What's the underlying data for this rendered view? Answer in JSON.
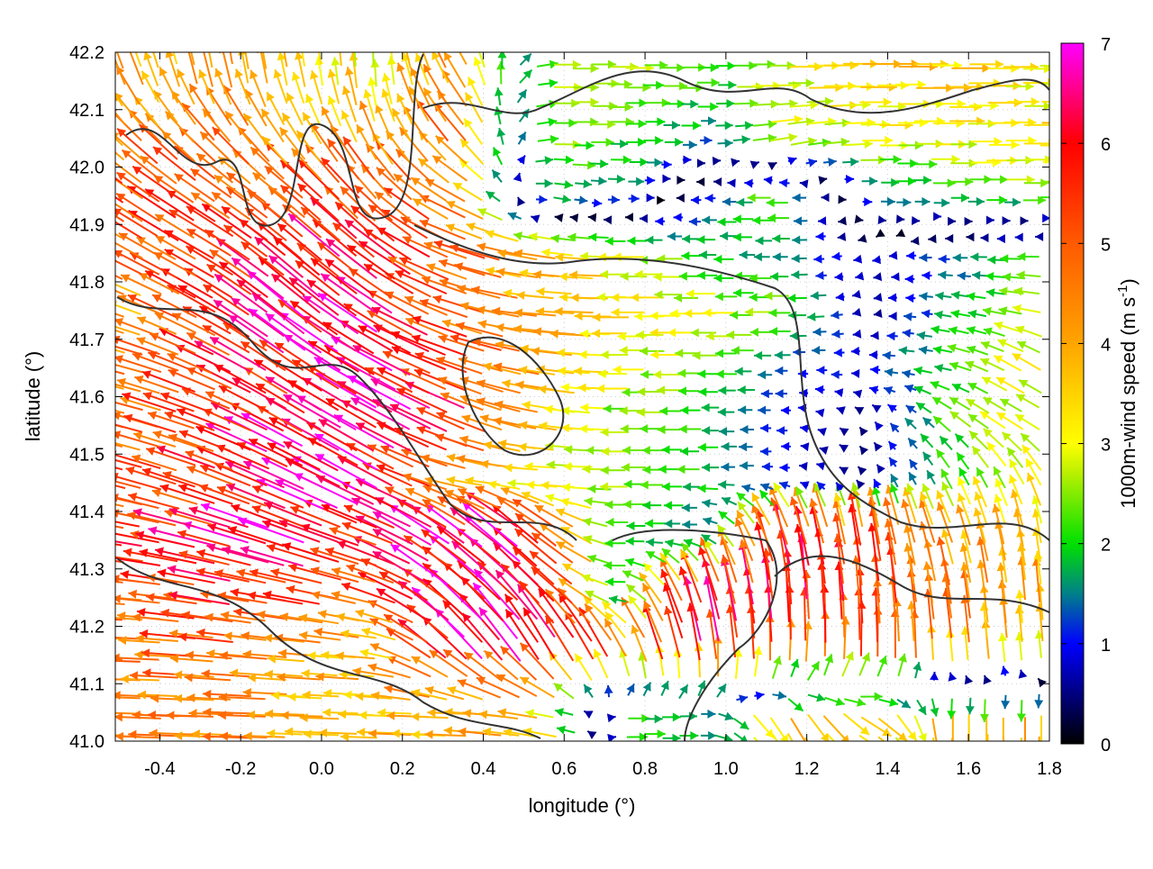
{
  "chart_data": {
    "type": "vector-field",
    "xlabel": "longitude (°)",
    "ylabel": "latitude (°)",
    "colorbar_label": "1000m-wind speed (m s",
    "colorbar_label_sup": "-1",
    "colorbar_label_end": ")",
    "xlim": [
      -0.51,
      1.8
    ],
    "ylim": [
      41.0,
      42.2
    ],
    "clim": [
      0,
      7
    ],
    "grid": true,
    "xticks": [
      "-0.4",
      "-0.2",
      "0.0",
      "0.2",
      "0.4",
      "0.6",
      "0.8",
      "1.0",
      "1.2",
      "1.4",
      "1.6",
      "1.8"
    ],
    "xtick_values": [
      -0.4,
      -0.2,
      0.0,
      0.2,
      0.4,
      0.6,
      0.8,
      1.0,
      1.2,
      1.4,
      1.6,
      1.8
    ],
    "yticks": [
      "41.0",
      "41.1",
      "41.2",
      "41.3",
      "41.4",
      "41.5",
      "41.6",
      "41.7",
      "41.8",
      "41.9",
      "42.0",
      "42.1",
      "42.2"
    ],
    "ytick_values": [
      41.0,
      41.1,
      41.2,
      41.3,
      41.4,
      41.5,
      41.6,
      41.7,
      41.8,
      41.9,
      42.0,
      42.1,
      42.2
    ],
    "cticks": [
      "0",
      "1",
      "2",
      "3",
      "4",
      "5",
      "6",
      "7"
    ],
    "ctick_values": [
      0,
      1,
      2,
      3,
      4,
      5,
      6,
      7
    ],
    "colormap": [
      {
        "v": 0,
        "c": "#000000"
      },
      {
        "v": 1,
        "c": "#0000ff"
      },
      {
        "v": 1.5,
        "c": "#00808a"
      },
      {
        "v": 2,
        "c": "#00e000"
      },
      {
        "v": 2.7,
        "c": "#b8f000"
      },
      {
        "v": 3,
        "c": "#ffff00"
      },
      {
        "v": 4,
        "c": "#ffa500"
      },
      {
        "v": 5,
        "c": "#ff5a00"
      },
      {
        "v": 6,
        "c": "#ff0000"
      },
      {
        "v": 7,
        "c": "#ff00ff"
      }
    ],
    "field_grid": {
      "lon": [
        -0.45,
        -0.25,
        -0.05,
        0.15,
        0.35,
        0.55,
        0.75,
        0.95,
        1.15,
        1.35,
        1.55,
        1.75
      ],
      "lat": [
        42.15,
        42.05,
        41.95,
        41.85,
        41.75,
        41.65,
        41.55,
        41.45,
        41.35,
        41.25,
        41.15,
        41.05
      ],
      "speed": [
        [
          4,
          4,
          3.5,
          3,
          4.5,
          2.5,
          2.5,
          2,
          3,
          3.5,
          3.5,
          3
        ],
        [
          4.5,
          4.5,
          4,
          4,
          5,
          2.5,
          2,
          1.5,
          3,
          3,
          3,
          3.5
        ],
        [
          5,
          5,
          5,
          5,
          4.5,
          2,
          1.5,
          1,
          2.5,
          1.5,
          2,
          2.5
        ],
        [
          5,
          5.5,
          6,
          6,
          5,
          4,
          3,
          2,
          1.5,
          0.8,
          1.2,
          2
        ],
        [
          4,
          5.5,
          6.5,
          6,
          5,
          4,
          3.5,
          3,
          2.5,
          0.5,
          1.5,
          2.5
        ],
        [
          4.5,
          5.5,
          6,
          6.5,
          5.5,
          4,
          3,
          2.5,
          1.2,
          1,
          2,
          3
        ],
        [
          5,
          5.5,
          6,
          6.5,
          6,
          4,
          2.5,
          2,
          1,
          0.5,
          2,
          3
        ],
        [
          5,
          5.5,
          6.5,
          6.5,
          4,
          3,
          2.5,
          2,
          1,
          0.5,
          2,
          3
        ],
        [
          5.5,
          6,
          6.5,
          5.5,
          6.5,
          6.5,
          2,
          1.5,
          5.5,
          5,
          4,
          3.5
        ],
        [
          5,
          5.5,
          5.5,
          5,
          6.5,
          6.5,
          2,
          6,
          6,
          5.5,
          4.5,
          4
        ],
        [
          4.5,
          5,
          4,
          3.5,
          6.5,
          6.5,
          5,
          6.5,
          5.5,
          5,
          4.5,
          3.5
        ],
        [
          4.5,
          4.5,
          4,
          4,
          4,
          4,
          2,
          1.5,
          4,
          3.5,
          4,
          4
        ]
      ],
      "direction_deg": [
        [
          110,
          100,
          100,
          90,
          120,
          0,
          0,
          0,
          0,
          0,
          0,
          0
        ],
        [
          135,
          130,
          120,
          110,
          130,
          0,
          0,
          0,
          10,
          0,
          0,
          0
        ],
        [
          145,
          145,
          140,
          130,
          150,
          350,
          0,
          180,
          180,
          0,
          0,
          0
        ],
        [
          150,
          150,
          140,
          140,
          160,
          170,
          180,
          180,
          180,
          190,
          180,
          180
        ],
        [
          160,
          150,
          140,
          145,
          160,
          175,
          180,
          180,
          180,
          200,
          170,
          170
        ],
        [
          165,
          155,
          145,
          150,
          160,
          170,
          180,
          180,
          180,
          180,
          170,
          150
        ],
        [
          165,
          160,
          150,
          150,
          155,
          170,
          180,
          180,
          180,
          120,
          140,
          150
        ],
        [
          165,
          160,
          155,
          150,
          170,
          180,
          180,
          180,
          180,
          130,
          120,
          120
        ],
        [
          170,
          165,
          160,
          160,
          145,
          140,
          180,
          180,
          110,
          100,
          110,
          100
        ],
        [
          175,
          170,
          170,
          165,
          140,
          135,
          180,
          110,
          95,
          95,
          100,
          95
        ],
        [
          178,
          175,
          175,
          175,
          135,
          120,
          120,
          100,
          90,
          90,
          95,
          95
        ],
        [
          178,
          178,
          178,
          178,
          178,
          170,
          0,
          0,
          300,
          330,
          270,
          270
        ]
      ]
    }
  }
}
